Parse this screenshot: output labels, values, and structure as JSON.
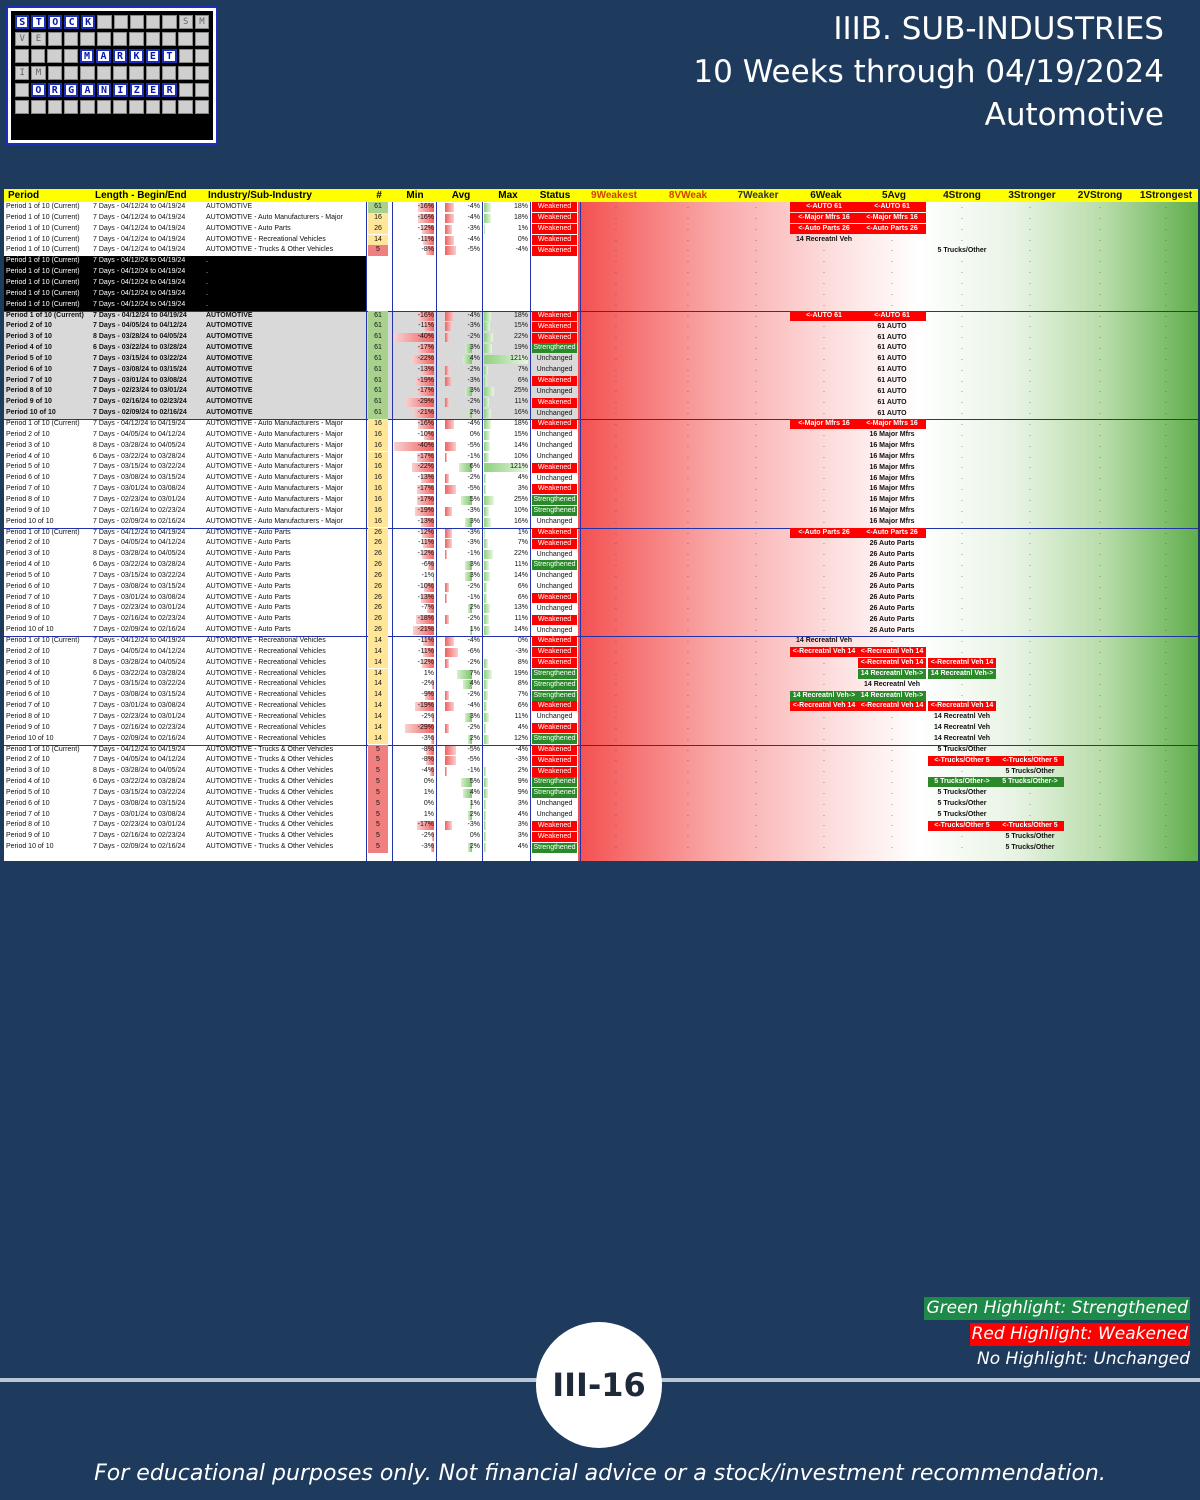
{
  "logo": {
    "rows": [
      {
        "cells": [
          "S",
          "T",
          "O",
          "C",
          "K",
          "",
          "",
          "",
          "",
          "",
          "S",
          "M"
        ],
        "hl": [
          0,
          1,
          2,
          3,
          4
        ]
      },
      {
        "cells": [
          "V",
          "E",
          "",
          "",
          "",
          "",
          "",
          "",
          "",
          "",
          "",
          ""
        ],
        "hl": []
      },
      {
        "cells": [
          "",
          "",
          "",
          "",
          "M",
          "A",
          "R",
          "K",
          "E",
          "T",
          "",
          ""
        ],
        "hl": [
          4,
          5,
          6,
          7,
          8,
          9
        ]
      },
      {
        "cells": [
          "I",
          "M",
          "",
          "",
          "",
          "",
          "",
          "",
          "",
          "",
          "",
          ""
        ],
        "hl": []
      },
      {
        "cells": [
          "",
          "O",
          "R",
          "G",
          "A",
          "N",
          "I",
          "Z",
          "E",
          "R",
          "",
          ""
        ],
        "hl": [
          1,
          2,
          3,
          4,
          5,
          6,
          7,
          8,
          9
        ]
      },
      {
        "cells": [
          "",
          "",
          "",
          "",
          "",
          "",
          "",
          "",
          "",
          "",
          "",
          ""
        ],
        "hl": []
      }
    ]
  },
  "header": {
    "line1": "IIIB. SUB-INDUSTRIES",
    "line2": "10 Weeks through 04/19/2024",
    "line3": "Automotive"
  },
  "columns": [
    "Period",
    "Length - Begin/End",
    "Industry/Sub-Industry",
    "#",
    "Min",
    "Avg",
    "Max",
    "Status",
    "9Weakest",
    "8VWeak",
    "7Weaker",
    "6Weak",
    "5Avg",
    "4Strong",
    "3Stronger",
    "2VStrong",
    "1Strongest"
  ],
  "rows": [
    [
      "Period 1 of 10 (Current)",
      "7 Days - 04/12/24 to 04/19/24",
      "AUTOMOTIVE",
      "61",
      "-16%",
      "-4%",
      "18%",
      "Weakened"
    ],
    [
      "Period 1 of 10 (Current)",
      "7 Days - 04/12/24 to 04/19/24",
      "AUTOMOTIVE - Auto Manufacturers - Major",
      "16",
      "-16%",
      "-4%",
      "18%",
      "Weakened"
    ],
    [
      "Period 1 of 10 (Current)",
      "7 Days - 04/12/24 to 04/19/24",
      "AUTOMOTIVE - Auto Parts",
      "26",
      "-12%",
      "-3%",
      "1%",
      "Weakened"
    ],
    [
      "Period 1 of 10 (Current)",
      "7 Days - 04/12/24 to 04/19/24",
      "AUTOMOTIVE - Recreational Vehicles",
      "14",
      "-11%",
      "-4%",
      "0%",
      "Weakened"
    ],
    [
      "Period 1 of 10 (Current)",
      "7 Days - 04/12/24 to 04/19/24",
      "AUTOMOTIVE - Trucks & Other Vehicles",
      "5",
      "-8%",
      "-5%",
      "-4%",
      "Weakened"
    ],
    [
      "Period 1 of 10 (Current)",
      "7 Days - 04/12/24 to 04/19/24",
      ".",
      "",
      "",
      "",
      "",
      ""
    ],
    [
      "Period 1 of 10 (Current)",
      "7 Days - 04/12/24 to 04/19/24",
      ".",
      "",
      "",
      "",
      "",
      ""
    ],
    [
      "Period 1 of 10 (Current)",
      "7 Days - 04/12/24 to 04/19/24",
      ".",
      "",
      "",
      "",
      "",
      ""
    ],
    [
      "Period 1 of 10 (Current)",
      "7 Days - 04/12/24 to 04/19/24",
      ".",
      "",
      "",
      "",
      "",
      ""
    ],
    [
      "Period 1 of 10 (Current)",
      "7 Days - 04/12/24 to 04/19/24",
      ".",
      "",
      "",
      "",
      "",
      ""
    ],
    [
      "Period 1 of 10 (Current)",
      "7 Days - 04/12/24 to 04/19/24",
      "AUTOMOTIVE",
      "61",
      "-16%",
      "-4%",
      "18%",
      "Weakened"
    ],
    [
      "Period 2 of 10",
      "7 Days - 04/05/24 to 04/12/24",
      "AUTOMOTIVE",
      "61",
      "-11%",
      "-3%",
      "15%",
      "Weakened"
    ],
    [
      "Period 3 of 10",
      "8 Days - 03/28/24 to 04/05/24",
      "AUTOMOTIVE",
      "61",
      "-40%",
      "-2%",
      "22%",
      "Weakened"
    ],
    [
      "Period 4 of 10",
      "6 Days - 03/22/24 to 03/28/24",
      "AUTOMOTIVE",
      "61",
      "-17%",
      "3%",
      "19%",
      "Strengthened"
    ],
    [
      "Period 5 of 10",
      "7 Days - 03/15/24 to 03/22/24",
      "AUTOMOTIVE",
      "61",
      "-22%",
      "4%",
      "121%",
      "Unchanged"
    ],
    [
      "Period 6 of 10",
      "7 Days - 03/08/24 to 03/15/24",
      "AUTOMOTIVE",
      "61",
      "-13%",
      "-2%",
      "7%",
      "Unchanged"
    ],
    [
      "Period 7 of 10",
      "7 Days - 03/01/24 to 03/08/24",
      "AUTOMOTIVE",
      "61",
      "-19%",
      "-3%",
      "6%",
      "Weakened"
    ],
    [
      "Period 8 of 10",
      "7 Days - 02/23/24 to 03/01/24",
      "AUTOMOTIVE",
      "61",
      "-17%",
      "3%",
      "25%",
      "Unchanged"
    ],
    [
      "Period 9 of 10",
      "7 Days - 02/16/24 to 02/23/24",
      "AUTOMOTIVE",
      "61",
      "-29%",
      "-2%",
      "11%",
      "Weakened"
    ],
    [
      "Period 10 of 10",
      "7 Days - 02/09/24 to 02/16/24",
      "AUTOMOTIVE",
      "61",
      "-21%",
      "2%",
      "16%",
      "Unchanged"
    ],
    [
      "Period 1 of 10 (Current)",
      "7 Days - 04/12/24 to 04/19/24",
      "AUTOMOTIVE - Auto Manufacturers - Major",
      "16",
      "-16%",
      "-4%",
      "18%",
      "Weakened"
    ],
    [
      "Period 2 of 10",
      "7 Days - 04/05/24 to 04/12/24",
      "AUTOMOTIVE - Auto Manufacturers - Major",
      "16",
      "-10%",
      "0%",
      "15%",
      "Unchanged"
    ],
    [
      "Period 3 of 10",
      "8 Days - 03/28/24 to 04/05/24",
      "AUTOMOTIVE - Auto Manufacturers - Major",
      "16",
      "-40%",
      "-5%",
      "14%",
      "Unchanged"
    ],
    [
      "Period 4 of 10",
      "6 Days - 03/22/24 to 03/28/24",
      "AUTOMOTIVE - Auto Manufacturers - Major",
      "16",
      "-17%",
      "-1%",
      "10%",
      "Unchanged"
    ],
    [
      "Period 5 of 10",
      "7 Days - 03/15/24 to 03/22/24",
      "AUTOMOTIVE - Auto Manufacturers - Major",
      "16",
      "-22%",
      "6%",
      "121%",
      "Weakened"
    ],
    [
      "Period 6 of 10",
      "7 Days - 03/08/24 to 03/15/24",
      "AUTOMOTIVE - Auto Manufacturers - Major",
      "16",
      "-13%",
      "-2%",
      "4%",
      "Unchanged"
    ],
    [
      "Period 7 of 10",
      "7 Days - 03/01/24 to 03/08/24",
      "AUTOMOTIVE - Auto Manufacturers - Major",
      "16",
      "-17%",
      "-5%",
      "3%",
      "Weakened"
    ],
    [
      "Period 8 of 10",
      "7 Days - 02/23/24 to 03/01/24",
      "AUTOMOTIVE - Auto Manufacturers - Major",
      "16",
      "-17%",
      "5%",
      "25%",
      "Strengthened"
    ],
    [
      "Period 9 of 10",
      "7 Days - 02/16/24 to 02/23/24",
      "AUTOMOTIVE - Auto Manufacturers - Major",
      "16",
      "-19%",
      "-3%",
      "10%",
      "Strengthened"
    ],
    [
      "Period 10 of 10",
      "7 Days - 02/09/24 to 02/16/24",
      "AUTOMOTIVE - Auto Manufacturers - Major",
      "16",
      "-13%",
      "3%",
      "16%",
      "Unchanged"
    ],
    [
      "Period 1 of 10 (Current)",
      "7 Days - 04/12/24 to 04/19/24",
      "AUTOMOTIVE - Auto Parts",
      "26",
      "-12%",
      "-3%",
      "1%",
      "Weakened"
    ],
    [
      "Period 2 of 10",
      "7 Days - 04/05/24 to 04/12/24",
      "AUTOMOTIVE - Auto Parts",
      "26",
      "-11%",
      "-3%",
      "7%",
      "Weakened"
    ],
    [
      "Period 3 of 10",
      "8 Days - 03/28/24 to 04/05/24",
      "AUTOMOTIVE - Auto Parts",
      "26",
      "-12%",
      "-1%",
      "22%",
      "Unchanged"
    ],
    [
      "Period 4 of 10",
      "6 Days - 03/22/24 to 03/28/24",
      "AUTOMOTIVE - Auto Parts",
      "26",
      "-6%",
      "3%",
      "11%",
      "Strengthened"
    ],
    [
      "Period 5 of 10",
      "7 Days - 03/15/24 to 03/22/24",
      "AUTOMOTIVE - Auto Parts",
      "26",
      "-1%",
      "3%",
      "14%",
      "Unchanged"
    ],
    [
      "Period 6 of 10",
      "7 Days - 03/08/24 to 03/15/24",
      "AUTOMOTIVE - Auto Parts",
      "26",
      "-10%",
      "-2%",
      "6%",
      "Unchanged"
    ],
    [
      "Period 7 of 10",
      "7 Days - 03/01/24 to 03/08/24",
      "AUTOMOTIVE - Auto Parts",
      "26",
      "-13%",
      "-1%",
      "6%",
      "Weakened"
    ],
    [
      "Period 8 of 10",
      "7 Days - 02/23/24 to 03/01/24",
      "AUTOMOTIVE - Auto Parts",
      "26",
      "-7%",
      "2%",
      "13%",
      "Unchanged"
    ],
    [
      "Period 9 of 10",
      "7 Days - 02/16/24 to 02/23/24",
      "AUTOMOTIVE - Auto Parts",
      "26",
      "-18%",
      "-2%",
      "11%",
      "Weakened"
    ],
    [
      "Period 10 of 10",
      "7 Days - 02/09/24 to 02/16/24",
      "AUTOMOTIVE - Auto Parts",
      "26",
      "-21%",
      "1%",
      "14%",
      "Unchanged"
    ],
    [
      "Period 1 of 10 (Current)",
      "7 Days - 04/12/24 to 04/19/24",
      "AUTOMOTIVE - Recreational Vehicles",
      "14",
      "-11%",
      "-4%",
      "0%",
      "Weakened"
    ],
    [
      "Period 2 of 10",
      "7 Days - 04/05/24 to 04/12/24",
      "AUTOMOTIVE - Recreational Vehicles",
      "14",
      "-11%",
      "-6%",
      "-3%",
      "Weakened"
    ],
    [
      "Period 3 of 10",
      "8 Days - 03/28/24 to 04/05/24",
      "AUTOMOTIVE - Recreational Vehicles",
      "14",
      "-12%",
      "-2%",
      "8%",
      "Weakened"
    ],
    [
      "Period 4 of 10",
      "6 Days - 03/22/24 to 03/28/24",
      "AUTOMOTIVE - Recreational Vehicles",
      "14",
      "1%",
      "7%",
      "19%",
      "Strengthened"
    ],
    [
      "Period 5 of 10",
      "7 Days - 03/15/24 to 03/22/24",
      "AUTOMOTIVE - Recreational Vehicles",
      "14",
      "-2%",
      "4%",
      "8%",
      "Strengthened"
    ],
    [
      "Period 6 of 10",
      "7 Days - 03/08/24 to 03/15/24",
      "AUTOMOTIVE - Recreational Vehicles",
      "14",
      "-9%",
      "-2%",
      "7%",
      "Strengthened"
    ],
    [
      "Period 7 of 10",
      "7 Days - 03/01/24 to 03/08/24",
      "AUTOMOTIVE - Recreational Vehicles",
      "14",
      "-19%",
      "-4%",
      "6%",
      "Weakened"
    ],
    [
      "Period 8 of 10",
      "7 Days - 02/23/24 to 03/01/24",
      "AUTOMOTIVE - Recreational Vehicles",
      "14",
      "-2%",
      "3%",
      "11%",
      "Unchanged"
    ],
    [
      "Period 9 of 10",
      "7 Days - 02/16/24 to 02/23/24",
      "AUTOMOTIVE - Recreational Vehicles",
      "14",
      "-29%",
      "-2%",
      "4%",
      "Weakened"
    ],
    [
      "Period 10 of 10",
      "7 Days - 02/09/24 to 02/16/24",
      "AUTOMOTIVE - Recreational Vehicles",
      "14",
      "-3%",
      "2%",
      "12%",
      "Strengthened"
    ],
    [
      "Period 1 of 10 (Current)",
      "7 Days - 04/12/24 to 04/19/24",
      "AUTOMOTIVE - Trucks & Other Vehicles",
      "5",
      "-8%",
      "-5%",
      "-4%",
      "Weakened"
    ],
    [
      "Period 2 of 10",
      "7 Days - 04/05/24 to 04/12/24",
      "AUTOMOTIVE - Trucks & Other Vehicles",
      "5",
      "-8%",
      "-5%",
      "-3%",
      "Weakened"
    ],
    [
      "Period 3 of 10",
      "8 Days - 03/28/24 to 04/05/24",
      "AUTOMOTIVE - Trucks & Other Vehicles",
      "5",
      "-4%",
      "-1%",
      "2%",
      "Weakened"
    ],
    [
      "Period 4 of 10",
      "6 Days - 03/22/24 to 03/28/24",
      "AUTOMOTIVE - Trucks & Other Vehicles",
      "5",
      "0%",
      "5%",
      "9%",
      "Strengthened"
    ],
    [
      "Period 5 of 10",
      "7 Days - 03/15/24 to 03/22/24",
      "AUTOMOTIVE - Trucks & Other Vehicles",
      "5",
      "1%",
      "4%",
      "9%",
      "Strengthened"
    ],
    [
      "Period 6 of 10",
      "7 Days - 03/08/24 to 03/15/24",
      "AUTOMOTIVE - Trucks & Other Vehicles",
      "5",
      "0%",
      "1%",
      "3%",
      "Unchanged"
    ],
    [
      "Period 7 of 10",
      "7 Days - 03/01/24 to 03/08/24",
      "AUTOMOTIVE - Trucks & Other Vehicles",
      "5",
      "1%",
      "2%",
      "4%",
      "Unchanged"
    ],
    [
      "Period 8 of 10",
      "7 Days - 02/23/24 to 03/01/24",
      "AUTOMOTIVE - Trucks & Other Vehicles",
      "5",
      "-17%",
      "-3%",
      "3%",
      "Weakened"
    ],
    [
      "Period 9 of 10",
      "7 Days - 02/16/24 to 02/23/24",
      "AUTOMOTIVE - Trucks & Other Vehicles",
      "5",
      "-2%",
      "0%",
      "3%",
      "Weakened"
    ],
    [
      "Period 10 of 10",
      "7 Days - 02/09/24 to 02/16/24",
      "AUTOMOTIVE - Trucks & Other Vehicles",
      "5",
      "-3%",
      "2%",
      "4%",
      "Strengthened"
    ]
  ],
  "heat_tags": [
    [
      [
        3,
        "<-AUTO 61",
        "r"
      ],
      [
        4,
        "<-AUTO 61",
        "r"
      ]
    ],
    [
      [
        3,
        "<-Major Mfrs 16",
        "r"
      ],
      [
        4,
        "<-Major Mfrs 16",
        "r"
      ]
    ],
    [
      [
        3,
        "<-Auto Parts 26",
        "r"
      ],
      [
        4,
        "<-Auto Parts 26",
        "r"
      ]
    ],
    [
      [
        3,
        "14 Recreatnl Veh",
        "n"
      ]
    ],
    [
      [
        5,
        "5 Trucks/Other",
        "n"
      ]
    ],
    [],
    [],
    [],
    [],
    [],
    [
      [
        3,
        "<-AUTO 61",
        "r"
      ],
      [
        4,
        "<-AUTO 61",
        "r"
      ]
    ],
    [
      [
        4,
        "61 AUTO",
        "n"
      ]
    ],
    [
      [
        4,
        "61 AUTO",
        "n"
      ]
    ],
    [
      [
        4,
        "61 AUTO",
        "n"
      ]
    ],
    [
      [
        4,
        "61 AUTO",
        "n"
      ]
    ],
    [
      [
        4,
        "61 AUTO",
        "n"
      ]
    ],
    [
      [
        4,
        "61 AUTO",
        "n"
      ]
    ],
    [
      [
        4,
        "61 AUTO",
        "n"
      ]
    ],
    [
      [
        4,
        "61 AUTO",
        "n"
      ]
    ],
    [
      [
        4,
        "61 AUTO",
        "n"
      ]
    ],
    [
      [
        3,
        "<-Major Mfrs 16",
        "r"
      ],
      [
        4,
        "<-Major Mfrs 16",
        "r"
      ]
    ],
    [
      [
        4,
        "16 Major Mfrs",
        "n"
      ]
    ],
    [
      [
        4,
        "16 Major Mfrs",
        "n"
      ]
    ],
    [
      [
        4,
        "16 Major Mfrs",
        "n"
      ]
    ],
    [
      [
        4,
        "16 Major Mfrs",
        "n"
      ]
    ],
    [
      [
        4,
        "16 Major Mfrs",
        "n"
      ]
    ],
    [
      [
        4,
        "16 Major Mfrs",
        "n"
      ]
    ],
    [
      [
        4,
        "16 Major Mfrs",
        "n"
      ]
    ],
    [
      [
        4,
        "16 Major Mfrs",
        "n"
      ]
    ],
    [
      [
        4,
        "16 Major Mfrs",
        "n"
      ]
    ],
    [
      [
        3,
        "<-Auto Parts 26",
        "r"
      ],
      [
        4,
        "<-Auto Parts 26",
        "r"
      ]
    ],
    [
      [
        4,
        "26 Auto Parts",
        "n"
      ]
    ],
    [
      [
        4,
        "26 Auto Parts",
        "n"
      ]
    ],
    [
      [
        4,
        "26 Auto Parts",
        "n"
      ]
    ],
    [
      [
        4,
        "26 Auto Parts",
        "n"
      ]
    ],
    [
      [
        4,
        "26 Auto Parts",
        "n"
      ]
    ],
    [
      [
        4,
        "26 Auto Parts",
        "n"
      ]
    ],
    [
      [
        4,
        "26 Auto Parts",
        "n"
      ]
    ],
    [
      [
        4,
        "26 Auto Parts",
        "n"
      ]
    ],
    [
      [
        4,
        "26 Auto Parts",
        "n"
      ]
    ],
    [
      [
        3,
        "14 Recreatnl Veh",
        "n"
      ]
    ],
    [
      [
        3,
        "<-Recreatnl Veh 14",
        "r"
      ],
      [
        4,
        "<-Recreatnl Veh 14",
        "r"
      ]
    ],
    [
      [
        4,
        "<-Recreatnl Veh 14",
        "r"
      ],
      [
        5,
        "<-Recreatnl Veh 14",
        "r"
      ]
    ],
    [
      [
        4,
        "14 Recreatnl Veh->",
        "g"
      ],
      [
        5,
        "14 Recreatnl Veh->",
        "g"
      ]
    ],
    [
      [
        4,
        "14 Recreatnl Veh",
        "n"
      ]
    ],
    [
      [
        3,
        "14 Recreatnl Veh->",
        "g"
      ],
      [
        4,
        "14 Recreatnl Veh->",
        "g"
      ]
    ],
    [
      [
        3,
        "<-Recreatnl Veh 14",
        "r"
      ],
      [
        4,
        "<-Recreatnl Veh 14",
        "r"
      ],
      [
        5,
        "<-Recreatnl Veh 14",
        "r"
      ]
    ],
    [
      [
        5,
        "14 Recreatnl Veh",
        "n"
      ]
    ],
    [
      [
        5,
        "14 Recreatnl Veh",
        "n"
      ]
    ],
    [
      [
        5,
        "14 Recreatnl Veh",
        "n"
      ]
    ],
    [
      [
        5,
        "5 Trucks/Other",
        "n"
      ]
    ],
    [
      [
        5,
        "<-Trucks/Other 5",
        "r"
      ],
      [
        6,
        "<-Trucks/Other 5",
        "r"
      ]
    ],
    [
      [
        6,
        "5 Trucks/Other",
        "n"
      ]
    ],
    [
      [
        5,
        "5 Trucks/Other->",
        "g"
      ],
      [
        6,
        "5 Trucks/Other->",
        "g"
      ]
    ],
    [
      [
        5,
        "5 Trucks/Other",
        "n"
      ]
    ],
    [
      [
        5,
        "5 Trucks/Other",
        "n"
      ]
    ],
    [
      [
        5,
        "5 Trucks/Other",
        "n"
      ]
    ],
    [
      [
        5,
        "<-Trucks/Other 5",
        "r"
      ],
      [
        6,
        "<-Trucks/Other 5",
        "r"
      ]
    ],
    [
      [
        6,
        "5 Trucks/Other",
        "n"
      ]
    ],
    [
      [
        6,
        "5 Trucks/Other",
        "n"
      ]
    ]
  ],
  "colors": {
    "weakened": "#ff0000",
    "strengthened": "#2a8a2a",
    "header_bg": "#ffff00",
    "page_bg": "#1e3a5c"
  },
  "legend": {
    "green": "Green Highlight: Strengthened",
    "red": "Red Highlight: Weakened",
    "none": "No Highlight: Unchanged"
  },
  "page_number": "III-16",
  "footer": "For educational purposes only. Not financial advice or a stock/investment recommendation."
}
